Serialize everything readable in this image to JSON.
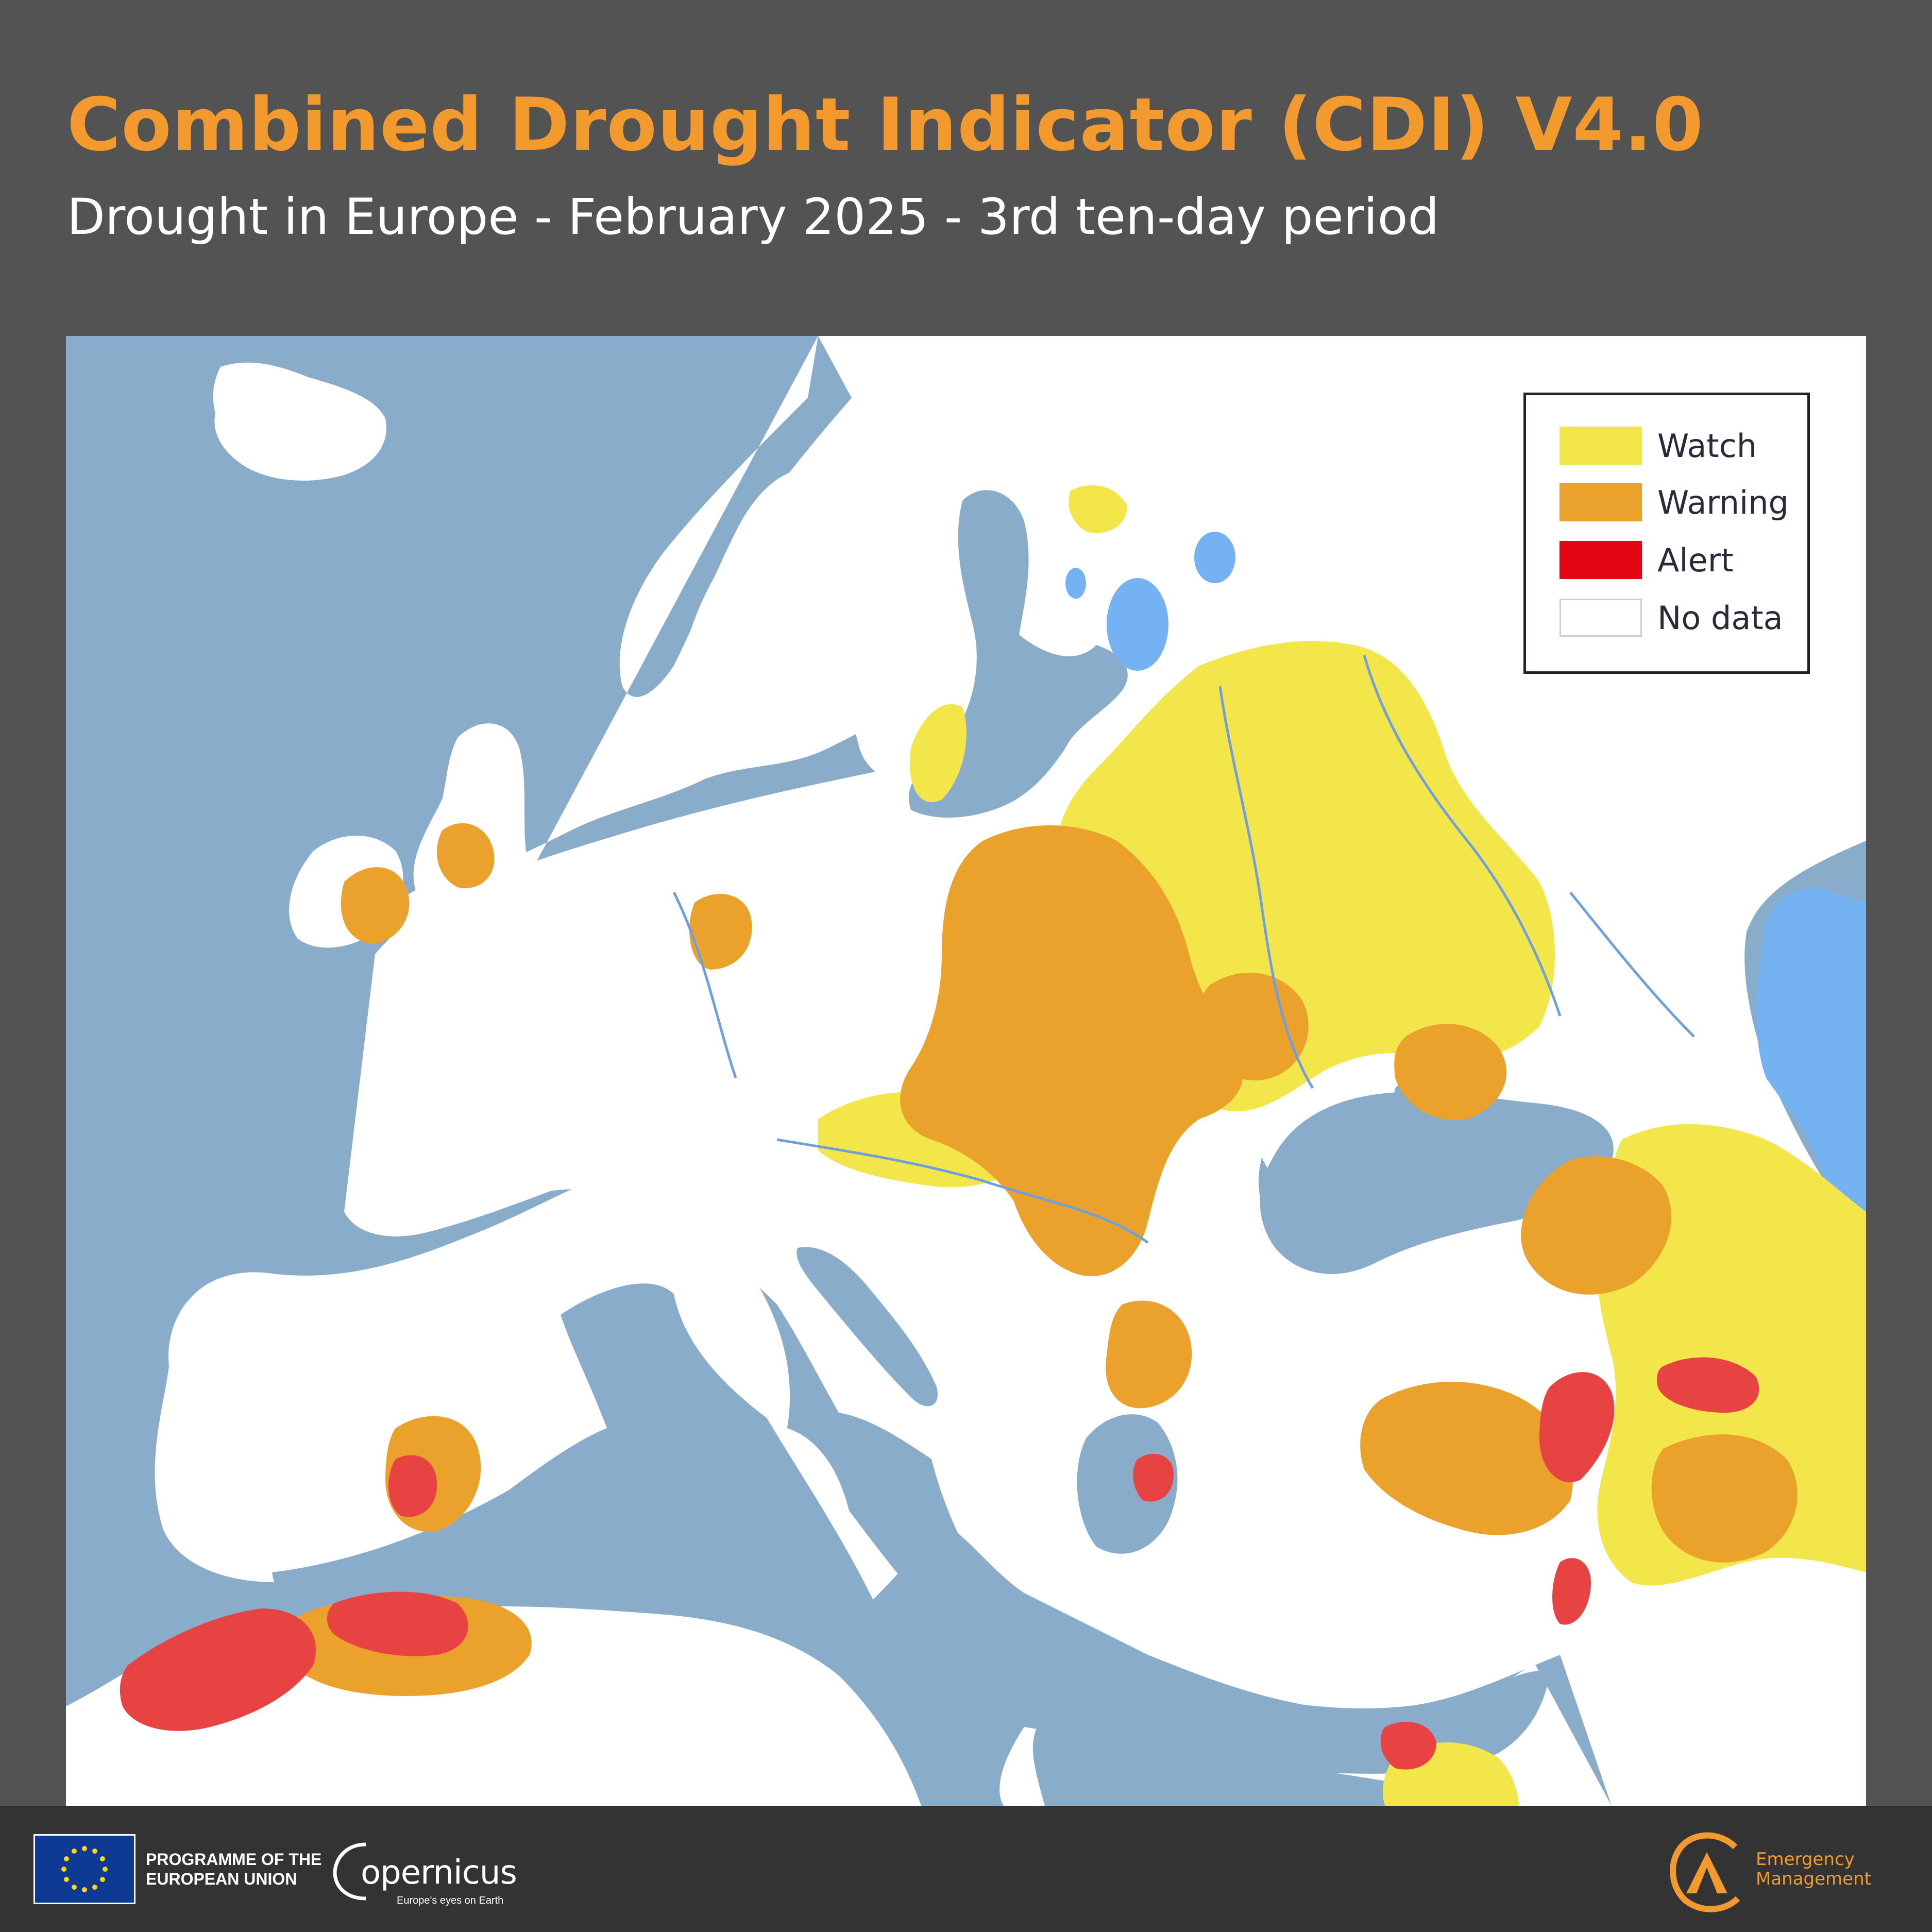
{
  "header": {
    "title": "Combined Drought Indicator (CDI) V4.0",
    "subtitle": "Drought in Europe - February 2025 - 3rd ten-day period"
  },
  "legend": {
    "items": [
      {
        "label": "Watch",
        "color": "#f2e64a"
      },
      {
        "label": "Warning",
        "color": "#eba22c"
      },
      {
        "label": "Alert",
        "color": "#e30613"
      },
      {
        "label": "No data",
        "color": "#ffffff"
      }
    ]
  },
  "map": {
    "sea_color": "#8aaccb",
    "land_color": "#ffffff",
    "lake_color": "#75b2f2"
  },
  "footer": {
    "eu_line1": "PROGRAMME OF THE",
    "eu_line2": "EUROPEAN UNION",
    "copernicus_word": "opernicus",
    "copernicus_tagline": "Europe's eyes on Earth",
    "em_line1": "Emergency",
    "em_line2": "Management"
  }
}
